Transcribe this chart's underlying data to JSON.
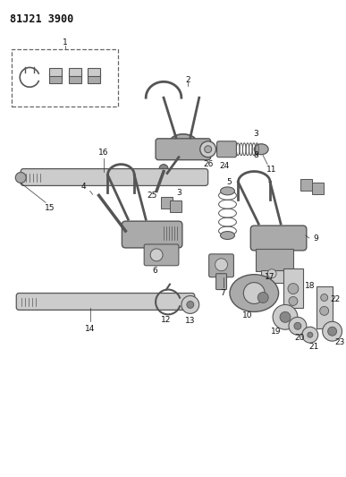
{
  "title": "81J21 3900",
  "bg_color": "#ffffff",
  "lc": "#555555",
  "fc_light": "#cccccc",
  "fc_mid": "#aaaaaa",
  "fc_dark": "#888888",
  "label_fs": 6.5,
  "title_fs": 8.5
}
